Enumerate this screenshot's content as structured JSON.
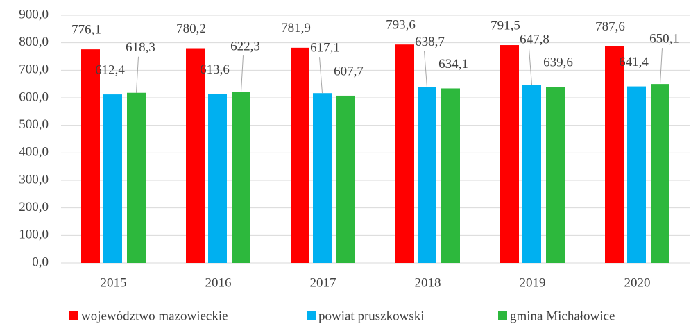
{
  "chart_data": {
    "type": "bar",
    "categories": [
      "2015",
      "2016",
      "2017",
      "2018",
      "2019",
      "2020"
    ],
    "series": [
      {
        "name": "województwo mazowieckie",
        "color": "#ff0000",
        "values": [
          776.1,
          780.2,
          781.9,
          793.6,
          791.5,
          787.6
        ],
        "value_labels": [
          "776,1",
          "780,2",
          "781,9",
          "793,6",
          "791,5",
          "787,6"
        ]
      },
      {
        "name": "powiat pruszkowski",
        "color": "#00b0f0",
        "values": [
          612.4,
          613.6,
          617.1,
          638.7,
          647.8,
          641.4
        ],
        "value_labels": [
          "612,4",
          "613,6",
          "617,1",
          "638,7",
          "647,8",
          "641,4"
        ]
      },
      {
        "name": "gmina Michałowice",
        "color": "#2db83d",
        "values": [
          618.3,
          622.3,
          607.7,
          634.1,
          639.6,
          650.1
        ],
        "value_labels": [
          "618,3",
          "622,3",
          "607,7",
          "634,1",
          "639,6",
          "650,1"
        ]
      }
    ],
    "ylim": [
      0,
      900
    ],
    "yticks": [
      {
        "value": 0,
        "label": "0,0"
      },
      {
        "value": 100,
        "label": "100,0"
      },
      {
        "value": 200,
        "label": "200,0"
      },
      {
        "value": 300,
        "label": "300,0"
      },
      {
        "value": 400,
        "label": "400,0"
      },
      {
        "value": 500,
        "label": "500,0"
      },
      {
        "value": 600,
        "label": "600,0"
      },
      {
        "value": 700,
        "label": "700,0"
      },
      {
        "value": 800,
        "label": "800,0"
      },
      {
        "value": 900,
        "label": "900,0"
      }
    ],
    "grid": true,
    "legend": "bottom"
  }
}
